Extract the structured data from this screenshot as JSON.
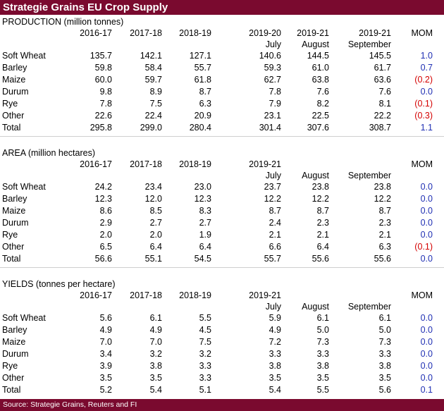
{
  "title": "Strategie Grains EU Crop Supply",
  "source": "Source: Strategie Grains, Reuters and FI",
  "sections": [
    {
      "title": "PRODUCTION (million tonnes)",
      "headers": [
        "2016-17",
        "2017-18",
        "2018-19",
        "2019-20",
        "2019-21",
        "2019-21",
        "MOM"
      ],
      "subheaders": [
        "",
        "",
        "",
        "July",
        "August",
        "September",
        ""
      ],
      "rows": [
        {
          "label": "Soft Wheat",
          "values": [
            "135.7",
            "142.1",
            "127.1",
            "140.6",
            "144.5",
            "145.5"
          ],
          "mom": "1.0",
          "mom_sign": "pos"
        },
        {
          "label": "Barley",
          "values": [
            "59.8",
            "58.4",
            "55.7",
            "59.3",
            "61.0",
            "61.7"
          ],
          "mom": "0.7",
          "mom_sign": "pos"
        },
        {
          "label": "Maize",
          "values": [
            "60.0",
            "59.7",
            "61.8",
            "62.7",
            "63.8",
            "63.6"
          ],
          "mom": "(0.2)",
          "mom_sign": "neg"
        },
        {
          "label": "Durum",
          "values": [
            "9.8",
            "8.9",
            "8.7",
            "7.8",
            "7.6",
            "7.6"
          ],
          "mom": "0.0",
          "mom_sign": "pos"
        },
        {
          "label": "Rye",
          "values": [
            "7.8",
            "7.5",
            "6.3",
            "7.9",
            "8.2",
            "8.1"
          ],
          "mom": "(0.1)",
          "mom_sign": "neg"
        },
        {
          "label": "Other",
          "values": [
            "22.6",
            "22.4",
            "20.9",
            "23.1",
            "22.5",
            "22.2"
          ],
          "mom": "(0.3)",
          "mom_sign": "neg"
        },
        {
          "label": "Total",
          "values": [
            "295.8",
            "299.0",
            "280.4",
            "301.4",
            "307.6",
            "308.7"
          ],
          "mom": "1.1",
          "mom_sign": "pos"
        }
      ]
    },
    {
      "title": "AREA (million hectares)",
      "headers": [
        "2016-17",
        "2017-18",
        "2018-19",
        "2019-21",
        "",
        "",
        "MOM"
      ],
      "subheaders": [
        "",
        "",
        "",
        "July",
        "August",
        "September",
        ""
      ],
      "rows": [
        {
          "label": "Soft Wheat",
          "values": [
            "24.2",
            "23.4",
            "23.0",
            "23.7",
            "23.8",
            "23.8"
          ],
          "mom": "0.0",
          "mom_sign": "pos"
        },
        {
          "label": "Barley",
          "values": [
            "12.3",
            "12.0",
            "12.3",
            "12.2",
            "12.2",
            "12.2"
          ],
          "mom": "0.0",
          "mom_sign": "pos"
        },
        {
          "label": "Maize",
          "values": [
            "8.6",
            "8.5",
            "8.3",
            "8.7",
            "8.7",
            "8.7"
          ],
          "mom": "0.0",
          "mom_sign": "pos"
        },
        {
          "label": "Durum",
          "values": [
            "2.9",
            "2.7",
            "2.7",
            "2.4",
            "2.3",
            "2.3"
          ],
          "mom": "0.0",
          "mom_sign": "pos"
        },
        {
          "label": "Rye",
          "values": [
            "2.0",
            "2.0",
            "1.9",
            "2.1",
            "2.1",
            "2.1"
          ],
          "mom": "0.0",
          "mom_sign": "pos"
        },
        {
          "label": "Other",
          "values": [
            "6.5",
            "6.4",
            "6.4",
            "6.6",
            "6.4",
            "6.3"
          ],
          "mom": "(0.1)",
          "mom_sign": "neg"
        },
        {
          "label": "Total",
          "values": [
            "56.6",
            "55.1",
            "54.5",
            "55.7",
            "55.6",
            "55.6"
          ],
          "mom": "0.0",
          "mom_sign": "pos"
        }
      ]
    },
    {
      "title": "YIELDS (tonnes per hectare)",
      "headers": [
        "2016-17",
        "2017-18",
        "2018-19",
        "2019-21",
        "",
        "",
        "MOM"
      ],
      "subheaders": [
        "",
        "",
        "",
        "July",
        "August",
        "September",
        ""
      ],
      "rows": [
        {
          "label": "Soft Wheat",
          "values": [
            "5.6",
            "6.1",
            "5.5",
            "5.9",
            "6.1",
            "6.1"
          ],
          "mom": "0.0",
          "mom_sign": "pos"
        },
        {
          "label": "Barley",
          "values": [
            "4.9",
            "4.9",
            "4.5",
            "4.9",
            "5.0",
            "5.0"
          ],
          "mom": "0.0",
          "mom_sign": "pos"
        },
        {
          "label": "Maize",
          "values": [
            "7.0",
            "7.0",
            "7.5",
            "7.2",
            "7.3",
            "7.3"
          ],
          "mom": "0.0",
          "mom_sign": "pos"
        },
        {
          "label": "Durum",
          "values": [
            "3.4",
            "3.2",
            "3.2",
            "3.3",
            "3.3",
            "3.3"
          ],
          "mom": "0.0",
          "mom_sign": "pos"
        },
        {
          "label": "Rye",
          "values": [
            "3.9",
            "3.8",
            "3.3",
            "3.8",
            "3.8",
            "3.8"
          ],
          "mom": "0.0",
          "mom_sign": "pos"
        },
        {
          "label": "Other",
          "values": [
            "3.5",
            "3.5",
            "3.3",
            "3.5",
            "3.5",
            "3.5"
          ],
          "mom": "0.0",
          "mom_sign": "pos"
        },
        {
          "label": "Total",
          "values": [
            "5.2",
            "5.4",
            "5.1",
            "5.4",
            "5.5",
            "5.6"
          ],
          "mom": "0.1",
          "mom_sign": "pos"
        }
      ]
    }
  ]
}
